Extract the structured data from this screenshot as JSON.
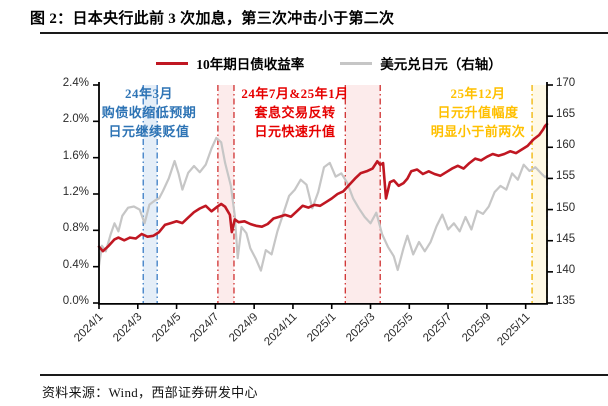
{
  "figure": {
    "title": "图 2：日本央行此前 3 次加息，第三次冲击小于第二次"
  },
  "legend": [
    {
      "label": "10年期日债收益率",
      "color": "#C01722"
    },
    {
      "label": "美元兑日元（右轴）",
      "color": "#C6C6C6"
    }
  ],
  "annotations": [
    {
      "lines": [
        "24年3月",
        "购债收缩低预期",
        "日元继续贬值"
      ],
      "color": "#2E74B5"
    },
    {
      "lines": [
        "24年7月&25年1月",
        "套息交易反转",
        "日元快速升值"
      ],
      "color": "#E60000"
    },
    {
      "lines": [
        "25年12月",
        "日元升值幅度",
        "明显小于前两次"
      ],
      "color": "#FFC000"
    }
  ],
  "source": "资料来源：Wind，西部证券研发中心",
  "chart_data": {
    "type": "line",
    "title": "日本央行此前 3 次加息，第三次冲击小于第二次",
    "x_unit": "months since 2024/1",
    "x_max": 23.1,
    "x_ticks": {
      "positions": [
        0,
        2,
        4,
        6,
        8,
        10,
        12,
        14,
        16,
        18,
        20,
        22
      ],
      "labels": [
        "2024/1",
        "2024/3",
        "2024/5",
        "2024/7",
        "2024/9",
        "2024/11",
        "2025/1",
        "2025/3",
        "2025/5",
        "2025/7",
        "2025/9",
        "2025/11"
      ]
    },
    "y_left": {
      "min": 0,
      "max": 2.4,
      "tick_labels": [
        "0.0%",
        "0.4%",
        "0.8%",
        "1.2%",
        "1.6%",
        "2.0%",
        "2.4%"
      ]
    },
    "y_right": {
      "min": 135,
      "max": 170,
      "tick_labels": [
        "135",
        "140",
        "145",
        "150",
        "155",
        "160",
        "165",
        "170"
      ]
    },
    "grid": false,
    "legend_position": "top-center",
    "series": [
      {
        "name": "10年期日债收益率",
        "axis": "left",
        "color": "#C01722",
        "points": [
          [
            0,
            0.62
          ],
          [
            0.2,
            0.57
          ],
          [
            0.5,
            0.63
          ],
          [
            0.8,
            0.7
          ],
          [
            1.0,
            0.72
          ],
          [
            1.3,
            0.69
          ],
          [
            1.6,
            0.72
          ],
          [
            1.9,
            0.71
          ],
          [
            2.2,
            0.76
          ],
          [
            2.5,
            0.73
          ],
          [
            2.8,
            0.74
          ],
          [
            3.1,
            0.78
          ],
          [
            3.4,
            0.86
          ],
          [
            3.7,
            0.88
          ],
          [
            4.0,
            0.9
          ],
          [
            4.3,
            0.88
          ],
          [
            4.6,
            0.94
          ],
          [
            4.9,
            1.0
          ],
          [
            5.2,
            1.04
          ],
          [
            5.5,
            1.07
          ],
          [
            5.8,
            1.01
          ],
          [
            6.1,
            1.06
          ],
          [
            6.3,
            1.09
          ],
          [
            6.5,
            1.06
          ],
          [
            6.75,
            0.97
          ],
          [
            6.85,
            0.78
          ],
          [
            7.0,
            0.92
          ],
          [
            7.2,
            0.89
          ],
          [
            7.5,
            0.9
          ],
          [
            7.8,
            0.87
          ],
          [
            8.1,
            0.85
          ],
          [
            8.4,
            0.84
          ],
          [
            8.7,
            0.87
          ],
          [
            9.0,
            0.93
          ],
          [
            9.3,
            0.95
          ],
          [
            9.6,
            0.97
          ],
          [
            9.9,
            0.95
          ],
          [
            10.2,
            1.01
          ],
          [
            10.5,
            1.07
          ],
          [
            10.8,
            1.05
          ],
          [
            11.1,
            1.08
          ],
          [
            11.4,
            1.07
          ],
          [
            11.7,
            1.11
          ],
          [
            12.0,
            1.15
          ],
          [
            12.3,
            1.2
          ],
          [
            12.6,
            1.23
          ],
          [
            12.9,
            1.3
          ],
          [
            13.2,
            1.37
          ],
          [
            13.5,
            1.43
          ],
          [
            13.8,
            1.45
          ],
          [
            14.1,
            1.48
          ],
          [
            14.35,
            1.56
          ],
          [
            14.5,
            1.52
          ],
          [
            14.65,
            1.54
          ],
          [
            14.8,
            1.15
          ],
          [
            15.0,
            1.33
          ],
          [
            15.2,
            1.35
          ],
          [
            15.45,
            1.29
          ],
          [
            15.7,
            1.32
          ],
          [
            15.9,
            1.37
          ],
          [
            16.1,
            1.45
          ],
          [
            16.4,
            1.47
          ],
          [
            16.7,
            1.42
          ],
          [
            17.0,
            1.45
          ],
          [
            17.3,
            1.42
          ],
          [
            17.6,
            1.4
          ],
          [
            17.9,
            1.44
          ],
          [
            18.2,
            1.48
          ],
          [
            18.5,
            1.51
          ],
          [
            18.8,
            1.48
          ],
          [
            19.1,
            1.54
          ],
          [
            19.4,
            1.59
          ],
          [
            19.7,
            1.57
          ],
          [
            20.0,
            1.61
          ],
          [
            20.3,
            1.64
          ],
          [
            20.6,
            1.62
          ],
          [
            20.9,
            1.64
          ],
          [
            21.2,
            1.67
          ],
          [
            21.5,
            1.65
          ],
          [
            21.8,
            1.69
          ],
          [
            22.1,
            1.73
          ],
          [
            22.4,
            1.8
          ],
          [
            22.7,
            1.85
          ],
          [
            22.9,
            1.91
          ],
          [
            23.0,
            1.95
          ],
          [
            23.1,
            1.97
          ]
        ]
      },
      {
        "name": "美元兑日元（右轴）",
        "axis": "right",
        "color": "#C6C6C6",
        "points": [
          [
            0,
            141.0
          ],
          [
            0.15,
            144.2
          ],
          [
            0.35,
            143.3
          ],
          [
            0.6,
            146.0
          ],
          [
            0.8,
            147.8
          ],
          [
            1.0,
            146.5
          ],
          [
            1.2,
            149.0
          ],
          [
            1.5,
            150.3
          ],
          [
            1.8,
            150.5
          ],
          [
            2.1,
            150.0
          ],
          [
            2.35,
            147.8
          ],
          [
            2.6,
            150.8
          ],
          [
            2.9,
            151.5
          ],
          [
            3.1,
            151.8
          ],
          [
            3.3,
            153.0
          ],
          [
            3.6,
            155.0
          ],
          [
            3.9,
            157.8
          ],
          [
            4.1,
            155.8
          ],
          [
            4.3,
            153.2
          ],
          [
            4.6,
            155.9
          ],
          [
            4.9,
            157.0
          ],
          [
            5.2,
            156.0
          ],
          [
            5.5,
            157.2
          ],
          [
            5.8,
            159.8
          ],
          [
            6.05,
            161.5
          ],
          [
            6.3,
            160.8
          ],
          [
            6.5,
            157.5
          ],
          [
            6.8,
            153.8
          ],
          [
            7.0,
            149.0
          ],
          [
            7.15,
            142.2
          ],
          [
            7.35,
            147.2
          ],
          [
            7.6,
            146.2
          ],
          [
            7.8,
            143.8
          ],
          [
            8.1,
            142.0
          ],
          [
            8.35,
            140.2
          ],
          [
            8.6,
            143.5
          ],
          [
            8.9,
            142.8
          ],
          [
            9.2,
            146.5
          ],
          [
            9.5,
            149.3
          ],
          [
            9.8,
            152.2
          ],
          [
            10.1,
            153.2
          ],
          [
            10.4,
            154.8
          ],
          [
            10.7,
            154.0
          ],
          [
            11.0,
            150.2
          ],
          [
            11.3,
            152.8
          ],
          [
            11.6,
            156.8
          ],
          [
            11.9,
            157.5
          ],
          [
            12.2,
            155.3
          ],
          [
            12.5,
            155.8
          ],
          [
            12.8,
            154.3
          ],
          [
            13.1,
            151.8
          ],
          [
            13.4,
            150.2
          ],
          [
            13.7,
            148.8
          ],
          [
            14.0,
            147.8
          ],
          [
            14.3,
            149.5
          ],
          [
            14.6,
            146.0
          ],
          [
            14.9,
            144.0
          ],
          [
            15.2,
            142.5
          ],
          [
            15.4,
            140.3
          ],
          [
            15.7,
            143.8
          ],
          [
            15.9,
            145.8
          ],
          [
            16.2,
            142.8
          ],
          [
            16.5,
            144.8
          ],
          [
            16.8,
            143.3
          ],
          [
            17.1,
            144.8
          ],
          [
            17.4,
            147.3
          ],
          [
            17.7,
            149.2
          ],
          [
            18.0,
            146.8
          ],
          [
            18.3,
            147.8
          ],
          [
            18.6,
            146.5
          ],
          [
            18.9,
            148.8
          ],
          [
            19.2,
            146.8
          ],
          [
            19.5,
            149.8
          ],
          [
            19.8,
            149.3
          ],
          [
            20.1,
            150.5
          ],
          [
            20.4,
            152.8
          ],
          [
            20.7,
            153.8
          ],
          [
            21.0,
            153.2
          ],
          [
            21.3,
            155.8
          ],
          [
            21.6,
            154.8
          ],
          [
            21.9,
            157.2
          ],
          [
            22.2,
            156.2
          ],
          [
            22.5,
            156.8
          ],
          [
            22.8,
            155.8
          ],
          [
            23.0,
            155.2
          ],
          [
            23.1,
            155.4
          ]
        ]
      }
    ],
    "highlight_regions": [
      {
        "name": "2024-03-hike",
        "x_start": 2.28,
        "x_end": 3.0,
        "line_color": "#3A7CC5",
        "fill": "rgba(110,160,215,0.18)"
      },
      {
        "name": "2024-07-hike",
        "x_start": 6.13,
        "x_end": 6.96,
        "line_color": "#D03030",
        "fill": "rgba(225,70,70,0.11)"
      },
      {
        "name": "2025-01-hike",
        "x_start": 12.7,
        "x_end": 14.5,
        "line_color": "#D03030",
        "fill": "rgba(225,70,70,0.11)"
      },
      {
        "name": "2025-12-hike",
        "x_start": 22.33,
        "x_end": 23.1,
        "line_color": "#F0B400",
        "fill": "rgba(255,205,60,0.13)"
      }
    ]
  }
}
